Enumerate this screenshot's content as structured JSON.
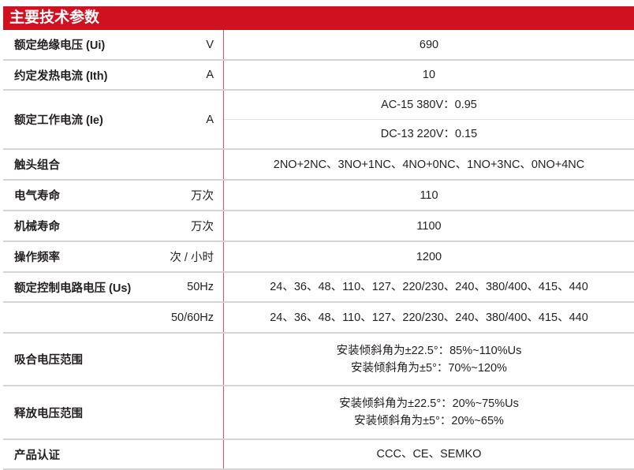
{
  "title": "主要技术参数",
  "colors": {
    "header_bg": "#cf1120",
    "divider": "#e0505c"
  },
  "rows": [
    {
      "label": "额定绝缘电压 (Ui)",
      "unit": "V",
      "values": [
        "690"
      ]
    },
    {
      "label": "约定发热电流  (Ith)",
      "unit": "A",
      "values": [
        "10"
      ]
    },
    {
      "label": "额定工作电流 (Ie)",
      "unit": "A",
      "values": [
        "AC-15  380V：0.95",
        "DC-13  220V：0.15"
      ]
    },
    {
      "label": "触头组合",
      "unit": "",
      "values": [
        "2NO+2NC、3NO+1NC、4NO+0NC、1NO+3NC、0NO+4NC"
      ]
    },
    {
      "label": "电气寿命",
      "unit": "万次",
      "values": [
        "110"
      ]
    },
    {
      "label": "机械寿命",
      "unit": "万次",
      "values": [
        "1100"
      ]
    },
    {
      "label": "操作频率",
      "unit": "次 / 小时",
      "values": [
        "1200"
      ]
    },
    {
      "label": "额定控制电路电压 (Us)",
      "unit": "50Hz",
      "values": [
        "24、36、48、110、127、220/230、240、380/400、415、440"
      ]
    },
    {
      "label": "",
      "unit": "50/60Hz",
      "values": [
        "24、36、48、110、127、220/230、240、380/400、415、440"
      ]
    },
    {
      "label": "吸合电压范围",
      "unit": "",
      "values": [
        "安装倾斜角为±22.5°：85%~110%Us",
        "安装倾斜角为±5°：70%~120%"
      ]
    },
    {
      "label": "释放电压范围",
      "unit": "",
      "values": [
        "安装倾斜角为±22.5°：20%~75%Us",
        "安装倾斜角为±5°：20%~65%"
      ]
    },
    {
      "label": "产品认证",
      "unit": "",
      "values": [
        "CCC、CE、SEMKO"
      ]
    }
  ]
}
